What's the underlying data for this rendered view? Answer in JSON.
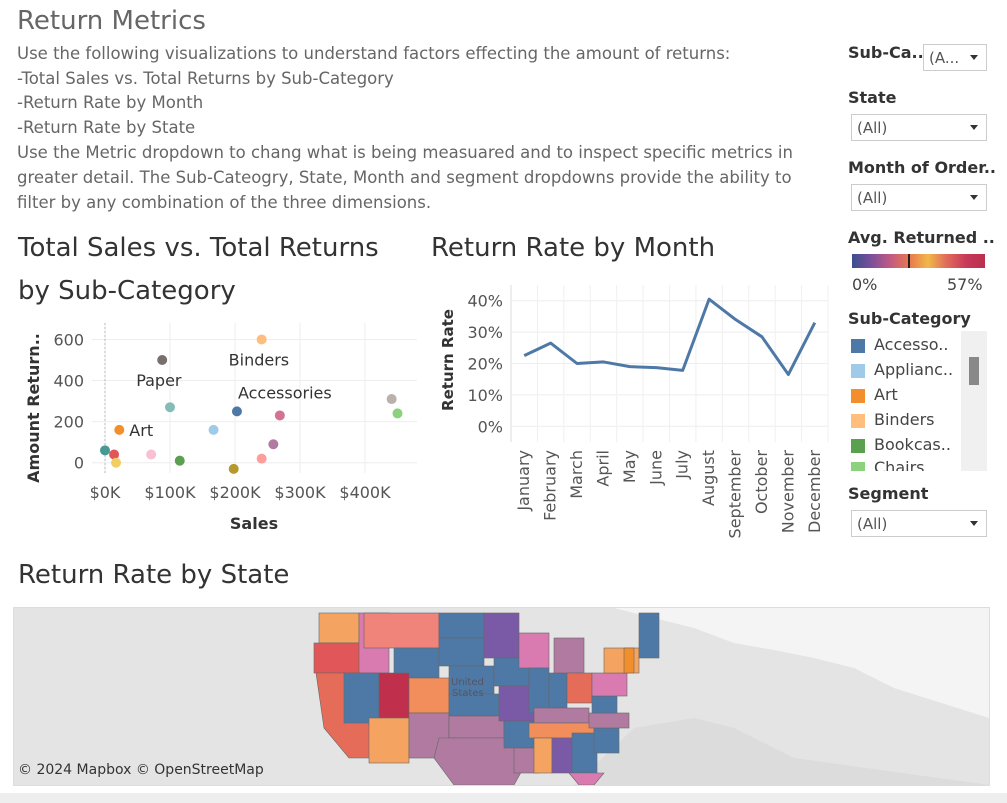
{
  "page": {
    "title": "Return Metrics",
    "description": [
      "Use the following visualizations to understand factors effecting the amount of returns:",
      "-Total Sales vs. Total Returns by Sub-Category",
      "-Return Rate by Month",
      "-Return Rate by State",
      "Use the Metric dropdown to chang what is being measuared and to inspect specific metrics in",
      "greater detail. The Sub-Cateogry, State, Month and segment dropdowns provide the ability to",
      "filter by any combination of the three dimensions."
    ]
  },
  "scatter": {
    "title_line1": "Total Sales vs. Total Returns",
    "title_line2": "by Sub-Category",
    "ylabel": "Amount Return..",
    "xlabel": "Sales"
  },
  "line": {
    "title": "Return Rate by Month",
    "ylabel": "Return Rate"
  },
  "map": {
    "title": "Return Rate by State",
    "attribution": "© 2024 Mapbox © OpenStreetMap",
    "country_label_1": "United",
    "country_label_2": "States"
  },
  "filters": {
    "subcategory": {
      "label": "Sub-Ca..",
      "value": "(A..."
    },
    "state": {
      "label": "State",
      "value": "(All)"
    },
    "month": {
      "label": "Month of Order..",
      "value": "(All)"
    },
    "segment": {
      "label": "Segment",
      "value": "(All)"
    }
  },
  "color_legend": {
    "title": "Avg. Returned ..",
    "min_label": "0%",
    "max_label": "57%",
    "marker_fraction": 0.42
  },
  "subcategory_legend": {
    "title": "Sub-Category",
    "items": [
      {
        "label": "Accesso..",
        "color": "#4e79a7"
      },
      {
        "label": "Applianc..",
        "color": "#a0cbe8"
      },
      {
        "label": "Art",
        "color": "#f28e2b"
      },
      {
        "label": "Binders",
        "color": "#ffbe7d"
      },
      {
        "label": "Bookcas..",
        "color": "#59a14f"
      },
      {
        "label": "Chairs",
        "color": "#8cd17d"
      }
    ]
  },
  "chart_data": [
    {
      "type": "scatter",
      "xlabel": "Sales",
      "ylabel": "Amount Return..",
      "x_ticks": [
        "$0K",
        "$100K",
        "$200K",
        "$300K",
        "$400K"
      ],
      "y_ticks": [
        "0",
        "200",
        "400",
        "600"
      ],
      "xlim": [
        -20000,
        480000
      ],
      "ylim": [
        -50,
        680
      ],
      "points": [
        {
          "x": 203000,
          "y": 250,
          "color": "#4e79a7",
          "label": "Accessories"
        },
        {
          "x": 167000,
          "y": 160,
          "color": "#a0cbe8",
          "label": ""
        },
        {
          "x": 22000,
          "y": 160,
          "color": "#f28e2b",
          "label": "Art"
        },
        {
          "x": 241000,
          "y": 600,
          "color": "#ffbe7d",
          "label": "Binders"
        },
        {
          "x": 115000,
          "y": 10,
          "color": "#59a14f",
          "label": ""
        },
        {
          "x": 450000,
          "y": 240,
          "color": "#8cd17d",
          "label": ""
        },
        {
          "x": 0,
          "y": 60,
          "color": "#499894",
          "label": ""
        },
        {
          "x": 100000,
          "y": 270,
          "color": "#86bcb6",
          "label": ""
        },
        {
          "x": 14000,
          "y": 40,
          "color": "#e15759",
          "label": ""
        },
        {
          "x": 241000,
          "y": 20,
          "color": "#ff9d9a",
          "label": ""
        },
        {
          "x": 88000,
          "y": 500,
          "color": "#79706e",
          "label": "Paper"
        },
        {
          "x": 441000,
          "y": 310,
          "color": "#bab0ac",
          "label": ""
        },
        {
          "x": 269000,
          "y": 230,
          "color": "#d37295",
          "label": ""
        },
        {
          "x": 71000,
          "y": 40,
          "color": "#fabfd2",
          "label": ""
        },
        {
          "x": 259000,
          "y": 90,
          "color": "#b07aa1",
          "label": ""
        },
        {
          "x": 198000,
          "y": -30,
          "color": "#b6992d",
          "label": ""
        },
        {
          "x": 17000,
          "y": 0,
          "color": "#f1ce63",
          "label": ""
        }
      ]
    },
    {
      "type": "line",
      "ylabel": "Return Rate",
      "categories": [
        "January",
        "February",
        "March",
        "April",
        "May",
        "June",
        "July",
        "August",
        "September",
        "October",
        "November",
        "December"
      ],
      "values": [
        22.5,
        26.5,
        20.0,
        20.5,
        19.0,
        18.7,
        17.8,
        40.5,
        34.0,
        28.5,
        16.5,
        33.0
      ],
      "y_ticks": [
        "0%",
        "10%",
        "20%",
        "30%",
        "40%"
      ],
      "ylim": [
        -5,
        45
      ],
      "color": "#4e79a7"
    }
  ]
}
